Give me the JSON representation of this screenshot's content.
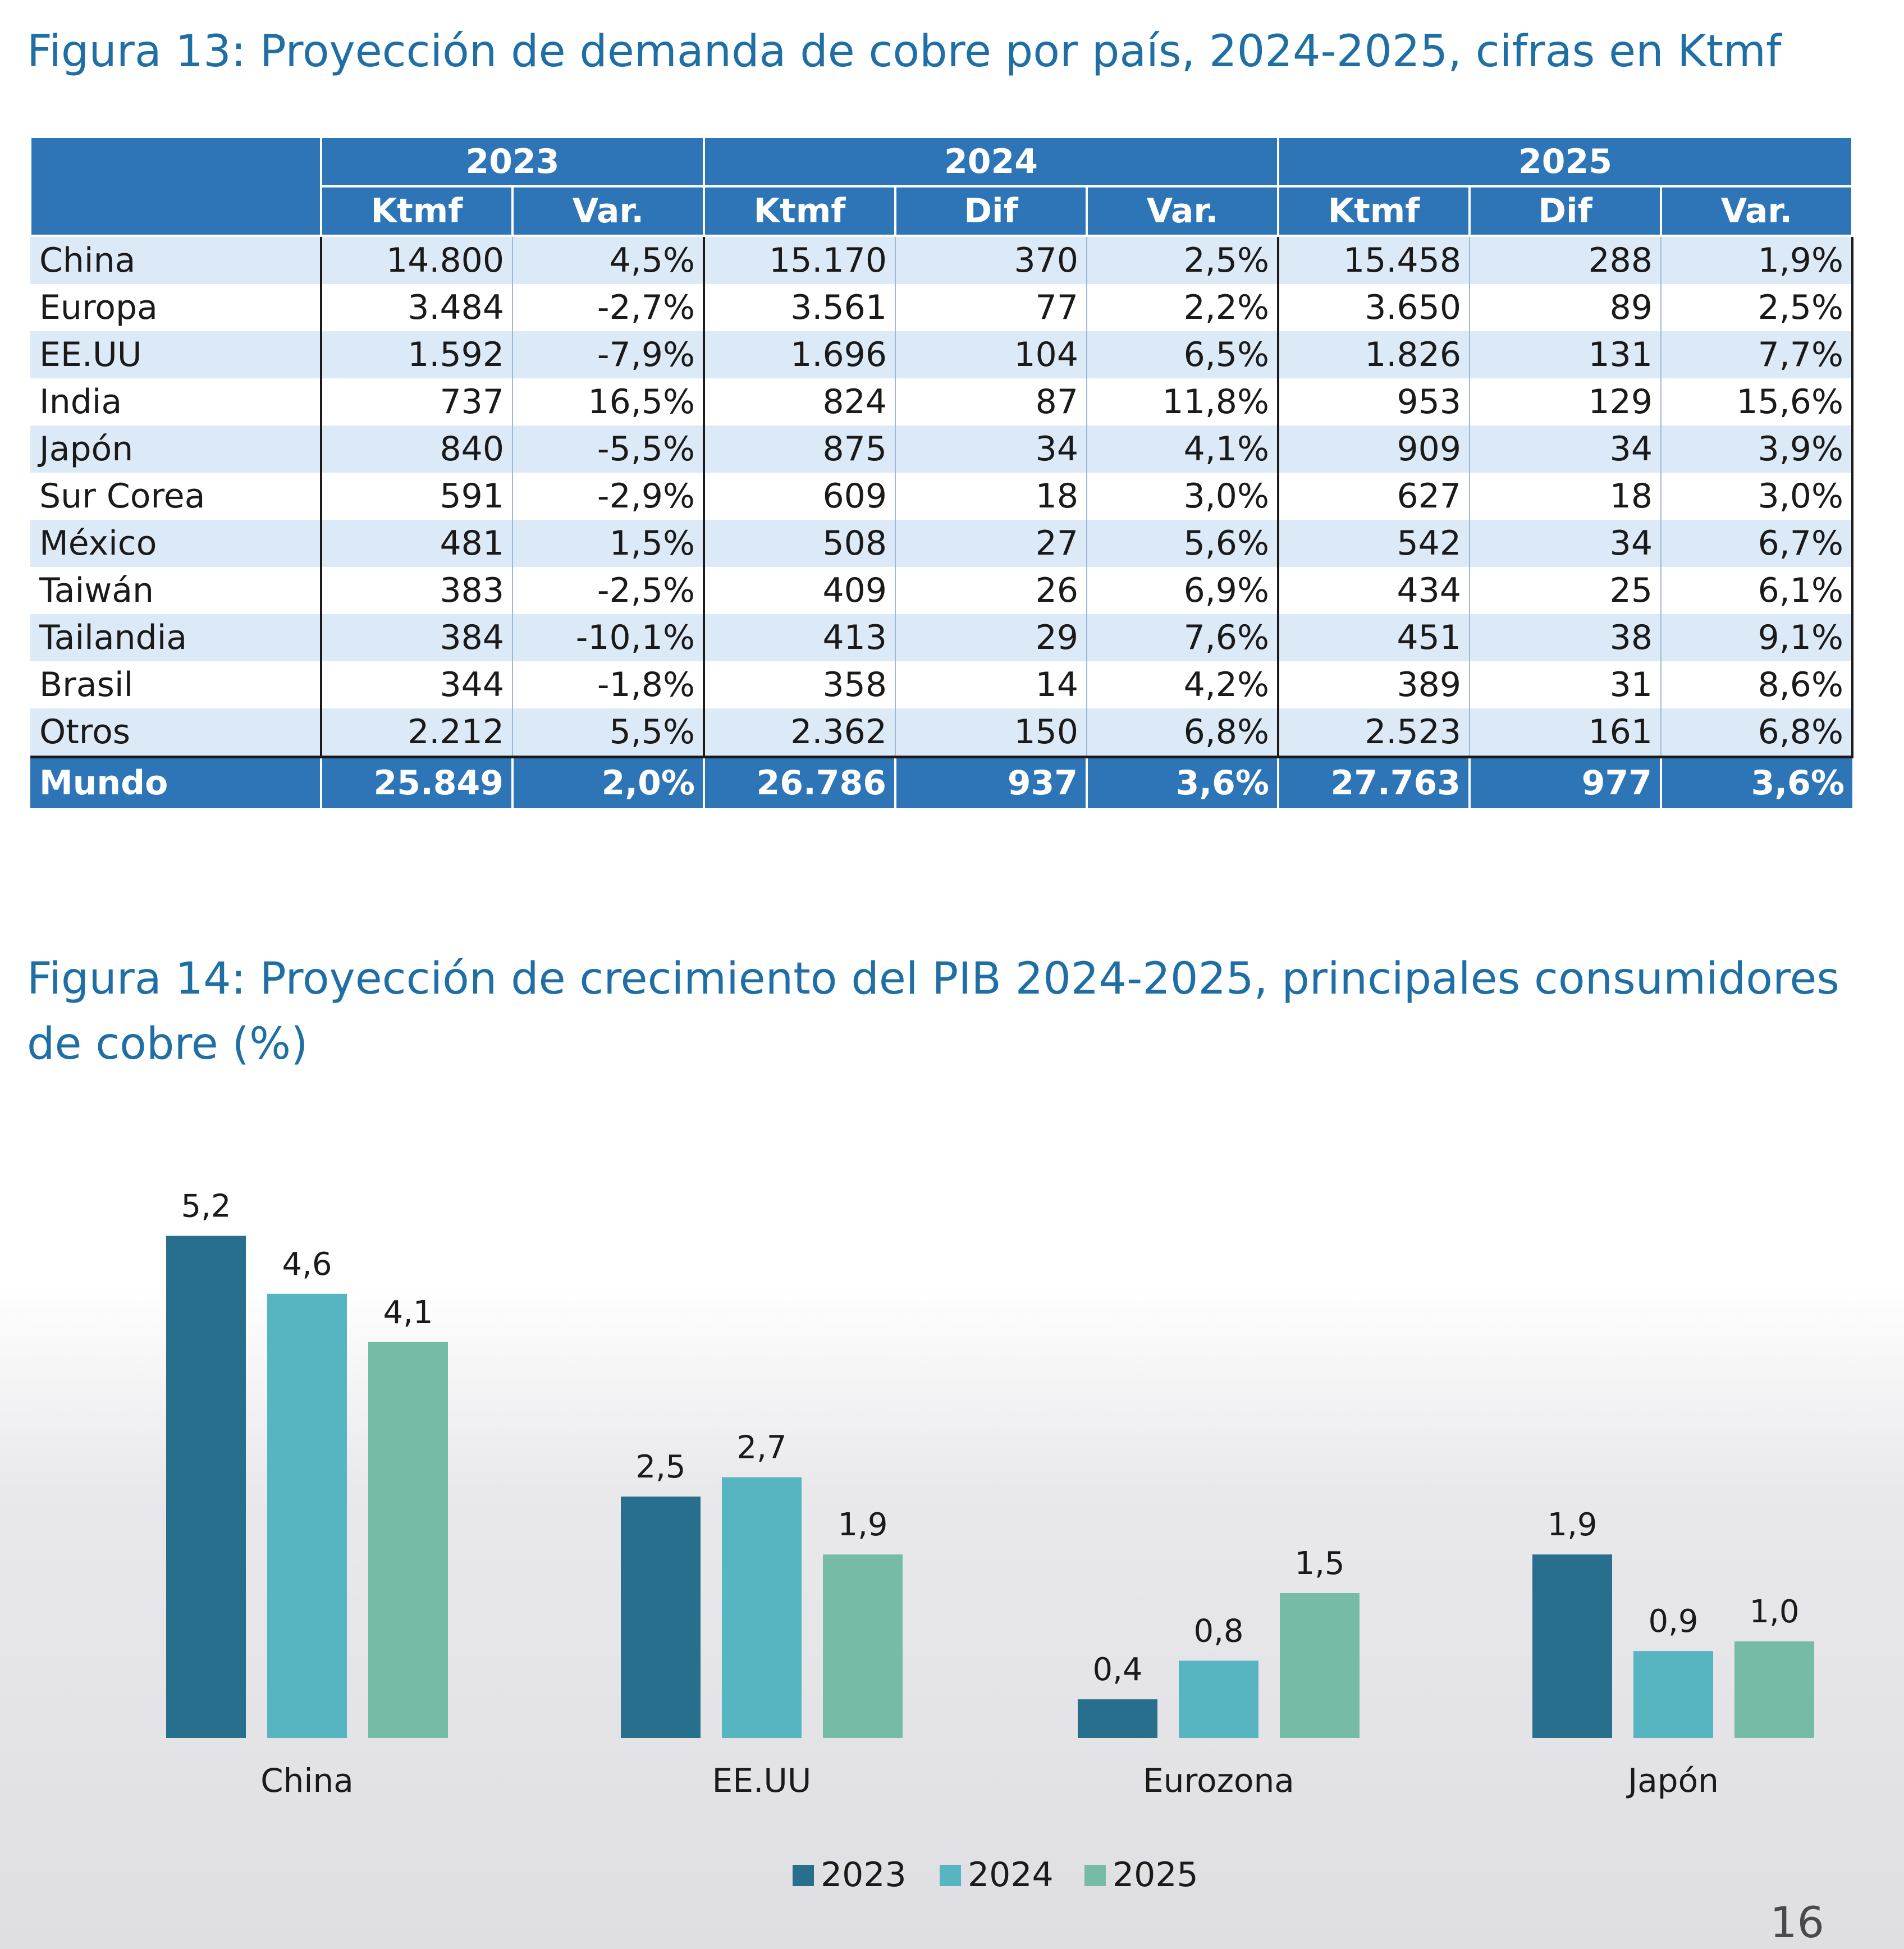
{
  "fig13": {
    "title": "Figura 13: Proyección de demanda de cobre por país,  2024-2025, cifras en Ktmf",
    "years": [
      "2023",
      "2024",
      "2025"
    ],
    "units": [
      "Ktmf",
      "Var.",
      "Ktmf",
      "Dif",
      "Var.",
      "Ktmf",
      "Dif",
      "Var."
    ],
    "rows": [
      {
        "country": "China",
        "cells": [
          "14.800",
          "4,5%",
          "15.170",
          "370",
          "2,5%",
          "15.458",
          "288",
          "1,9%"
        ]
      },
      {
        "country": "Europa",
        "cells": [
          "3.484",
          "-2,7%",
          "3.561",
          "77",
          "2,2%",
          "3.650",
          "89",
          "2,5%"
        ]
      },
      {
        "country": "EE.UU",
        "cells": [
          "1.592",
          "-7,9%",
          "1.696",
          "104",
          "6,5%",
          "1.826",
          "131",
          "7,7%"
        ]
      },
      {
        "country": "India",
        "cells": [
          "737",
          "16,5%",
          "824",
          "87",
          "11,8%",
          "953",
          "129",
          "15,6%"
        ]
      },
      {
        "country": "Japón",
        "cells": [
          "840",
          "-5,5%",
          "875",
          "34",
          "4,1%",
          "909",
          "34",
          "3,9%"
        ]
      },
      {
        "country": "Sur Corea",
        "cells": [
          "591",
          "-2,9%",
          "609",
          "18",
          "3,0%",
          "627",
          "18",
          "3,0%"
        ]
      },
      {
        "country": "México",
        "cells": [
          "481",
          "1,5%",
          "508",
          "27",
          "5,6%",
          "542",
          "34",
          "6,7%"
        ]
      },
      {
        "country": "Taiwán",
        "cells": [
          "383",
          "-2,5%",
          "409",
          "26",
          "6,9%",
          "434",
          "25",
          "6,1%"
        ]
      },
      {
        "country": "Tailandia",
        "cells": [
          "384",
          "-10,1%",
          "413",
          "29",
          "7,6%",
          "451",
          "38",
          "9,1%"
        ]
      },
      {
        "country": "Brasil",
        "cells": [
          "344",
          "-1,8%",
          "358",
          "14",
          "4,2%",
          "389",
          "31",
          "8,6%"
        ]
      },
      {
        "country": "Otros",
        "cells": [
          "2.212",
          "5,5%",
          "2.362",
          "150",
          "6,8%",
          "2.523",
          "161",
          "6,8%"
        ]
      }
    ],
    "total": {
      "country": "Mundo",
      "cells": [
        "25.849",
        "2,0%",
        "26.786",
        "937",
        "3,6%",
        "27.763",
        "977",
        "3,6%"
      ]
    }
  },
  "fig14": {
    "title": "Figura 14: Proyección de crecimiento del PIB 2024-2025, principales consumidores de cobre (%)"
  },
  "chart_data": {
    "type": "bar",
    "title": "Figura 14: Proyección de crecimiento del PIB 2024-2025, principales consumidores de cobre (%)",
    "categories": [
      "China",
      "EE.UU",
      "Eurozona",
      "Japón"
    ],
    "series": [
      {
        "name": "2023",
        "values": [
          5.2,
          2.5,
          0.4,
          1.9
        ],
        "labels": [
          "5,2",
          "2,5",
          "0,4",
          "1,9"
        ],
        "color": "#276f8c"
      },
      {
        "name": "2024",
        "values": [
          4.6,
          2.7,
          0.8,
          0.9
        ],
        "labels": [
          "4,6",
          "2,7",
          "0,8",
          "0,9"
        ],
        "color": "#56b5c1"
      },
      {
        "name": "2025",
        "values": [
          4.1,
          1.9,
          1.5,
          1.0
        ],
        "labels": [
          "4,1",
          "1,9",
          "1,5",
          "1,0"
        ],
        "color": "#75bba6"
      }
    ],
    "xlabel": "",
    "ylabel": "",
    "ylim": [
      0,
      5.2
    ],
    "grid": false,
    "legend": "bottom-center"
  },
  "page_number": "16"
}
